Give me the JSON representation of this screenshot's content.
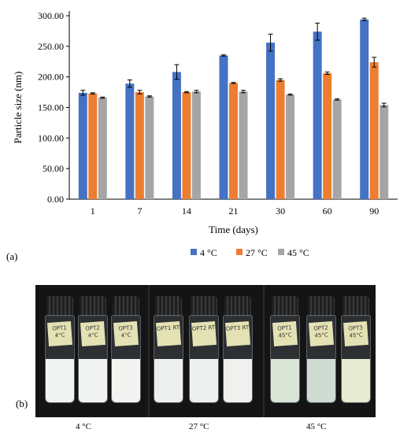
{
  "chart_data": {
    "type": "bar",
    "xlabel": "Time (days)",
    "ylabel": "Particle size (nm)",
    "ylim": [
      0,
      300
    ],
    "yticks": [
      "0.00",
      "50.00",
      "100.00",
      "150.00",
      "200.00",
      "250.00",
      "300.00"
    ],
    "categories": [
      "1",
      "7",
      "14",
      "21",
      "30",
      "60",
      "90"
    ],
    "legend_position": "bottom",
    "series": [
      {
        "name": "4 °C",
        "color": "#4472C4",
        "values": [
          174,
          189,
          208,
          235,
          256,
          274,
          294
        ],
        "errors": [
          4,
          6,
          12,
          1,
          14,
          14,
          2
        ]
      },
      {
        "name": "27 °C",
        "color": "#ED7D31",
        "values": [
          173,
          175,
          175,
          190,
          195,
          206,
          224
        ],
        "errors": [
          1,
          3,
          1,
          1,
          2,
          2,
          8
        ]
      },
      {
        "name": "45 °C",
        "color": "#A5A5A5",
        "values": [
          166,
          168,
          176,
          176,
          171,
          163,
          154
        ],
        "errors": [
          1,
          1,
          2,
          2,
          1,
          1,
          3
        ]
      }
    ]
  },
  "panel_a_label": "(a)",
  "panel_b_label": "(b)",
  "photo": {
    "groups": [
      {
        "caption": "4 °C",
        "vials": [
          {
            "tag": "OPT1 4°C",
            "liquid": "#f2f4f3"
          },
          {
            "tag": "OPT2 4°C",
            "liquid": "#f2f4f3"
          },
          {
            "tag": "OPT3 4°C",
            "liquid": "#f3f4f2"
          }
        ]
      },
      {
        "caption": "27 °C",
        "vials": [
          {
            "tag": "OPT1 RT",
            "liquid": "#eef0ef"
          },
          {
            "tag": "OPT2 RT",
            "liquid": "#eef0ef"
          },
          {
            "tag": "OPT3 RT",
            "liquid": "#f0f1ef"
          }
        ]
      },
      {
        "caption": "45 °C",
        "vials": [
          {
            "tag": "OPT1 45°C",
            "liquid": "#d9e4d7"
          },
          {
            "tag": "OPT2 45°C",
            "liquid": "#cfdcd3"
          },
          {
            "tag": "OPT3 45°C",
            "liquid": "#e6ebd2"
          }
        ]
      }
    ]
  }
}
